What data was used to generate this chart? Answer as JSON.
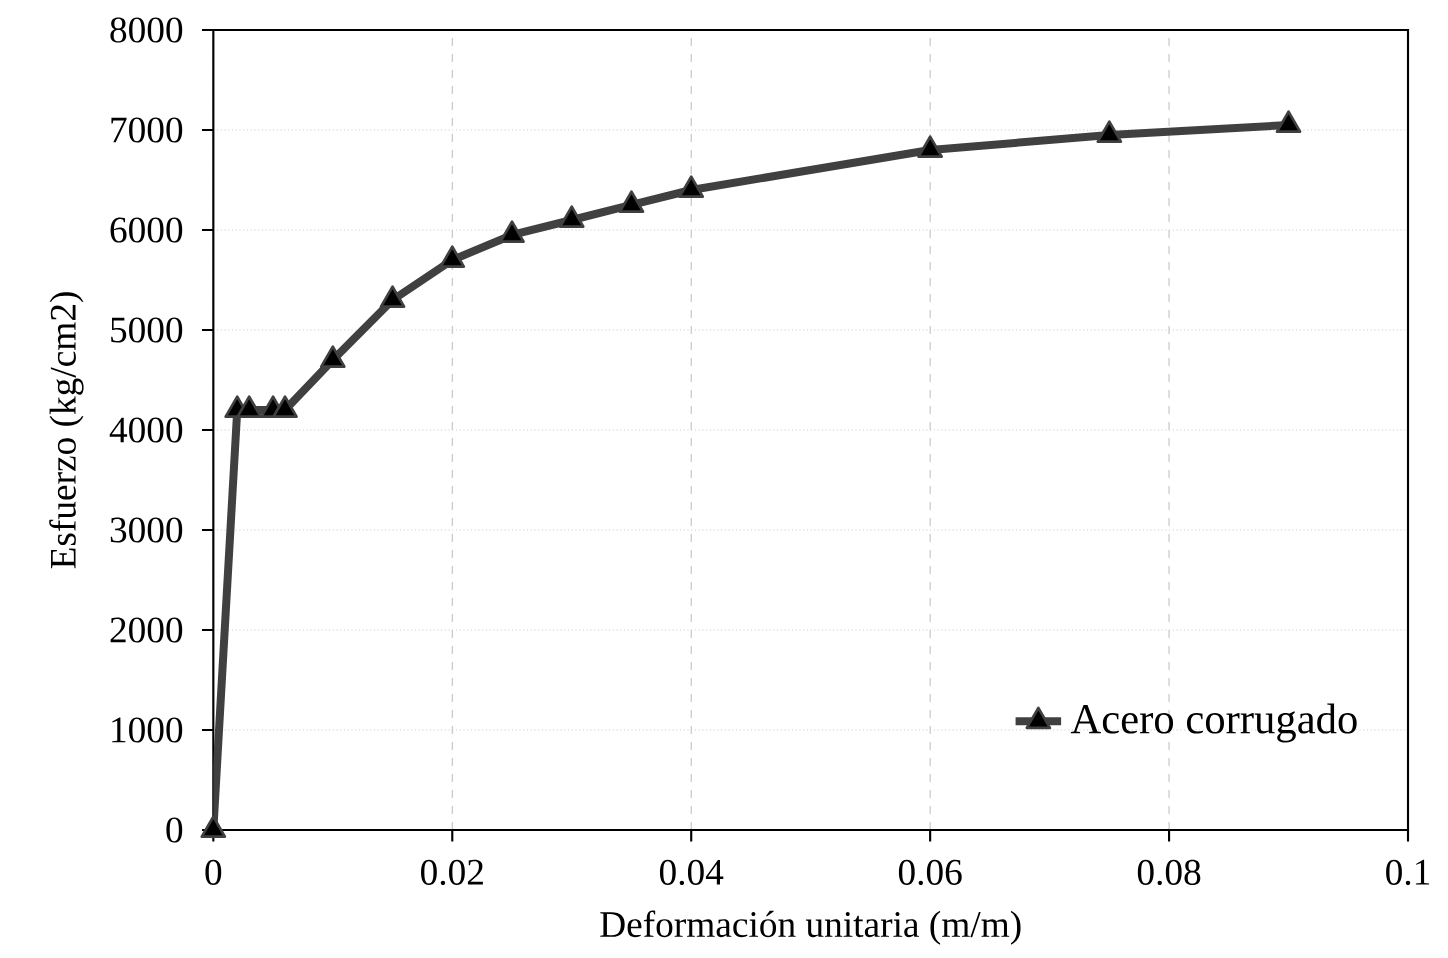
{
  "chart_data": {
    "type": "line",
    "xlabel": "Deformación unitaria (m/m)",
    "ylabel": "Esfuerzo (kg/cm2)",
    "xlim": [
      0,
      0.1
    ],
    "ylim": [
      0,
      8000
    ],
    "xticks": [
      0,
      0.02,
      0.04,
      0.06,
      0.08,
      0.1
    ],
    "yticks": [
      0,
      1000,
      2000,
      3000,
      4000,
      5000,
      6000,
      7000,
      8000
    ],
    "grid": true,
    "legend": "bottom right",
    "marker": "triangle",
    "line_style": "solid",
    "series": [
      {
        "name": "Acero corrugado",
        "color": "#404040",
        "x": [
          0,
          0.002,
          0.003,
          0.005,
          0.006,
          0.01,
          0.015,
          0.02,
          0.025,
          0.03,
          0.035,
          0.04,
          0.06,
          0.075,
          0.09
        ],
        "values": [
          0,
          4200,
          4200,
          4200,
          4200,
          4700,
          5300,
          5700,
          5950,
          6100,
          6250,
          6400,
          6800,
          6950,
          7050
        ]
      }
    ]
  }
}
